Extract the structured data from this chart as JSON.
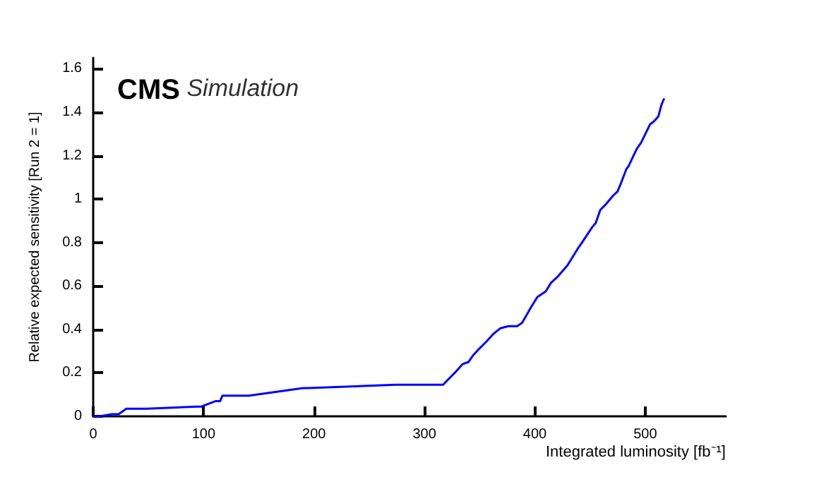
{
  "chart_data": {
    "type": "line",
    "xlabel": "Integrated luminosity [fb⁻¹]",
    "ylabel": "Relative expected sensitivity [Run 2 = 1]",
    "annotations": [
      "CMS",
      "Simulation"
    ],
    "x": [
      0,
      6,
      17,
      23,
      30,
      48,
      94,
      98,
      111,
      115,
      117,
      141,
      190,
      194,
      274,
      317,
      320.6,
      327.5,
      334.6,
      339.9,
      344,
      349.4,
      356.4,
      362.6,
      368.7,
      376,
      384,
      388.5,
      397.5,
      402.5,
      409.9,
      414.8,
      420.2,
      429.6,
      438.7,
      442.8,
      451.9,
      455.2,
      459.3,
      464.2,
      470.8,
      474.9,
      477.8,
      483.1,
      484.8,
      492.2,
      496.3,
      504.5,
      507.4,
      511.9,
      514.8,
      516.9
    ],
    "series": [
      {
        "color": "#0000ff",
        "values": [
          0,
          0,
          0.01,
          0.01,
          0.035,
          0.035,
          0.045,
          0.045,
          0.07,
          0.07,
          0.095,
          0.095,
          0.13,
          0.13,
          0.145,
          0.145,
          0.165,
          0.2,
          0.24,
          0.25,
          0.28,
          0.31,
          0.345,
          0.38,
          0.405,
          0.415,
          0.415,
          0.43,
          0.51,
          0.55,
          0.575,
          0.615,
          0.64,
          0.695,
          0.77,
          0.8,
          0.87,
          0.89,
          0.95,
          0.975,
          1.015,
          1.035,
          1.07,
          1.14,
          1.15,
          1.23,
          1.26,
          1.345,
          1.355,
          1.38,
          1.435,
          1.46
        ]
      }
    ],
    "xlim": [
      0,
      573
    ],
    "xticks": [
      0,
      100,
      200,
      300,
      400,
      500
    ],
    "ylim": [
      0,
      1.65
    ],
    "yticks": [
      0,
      0.2,
      0.4,
      0.6,
      0.8,
      1,
      1.2,
      1.4,
      1.6
    ],
    "grid": false,
    "marker": "none",
    "line_style": "solid"
  }
}
